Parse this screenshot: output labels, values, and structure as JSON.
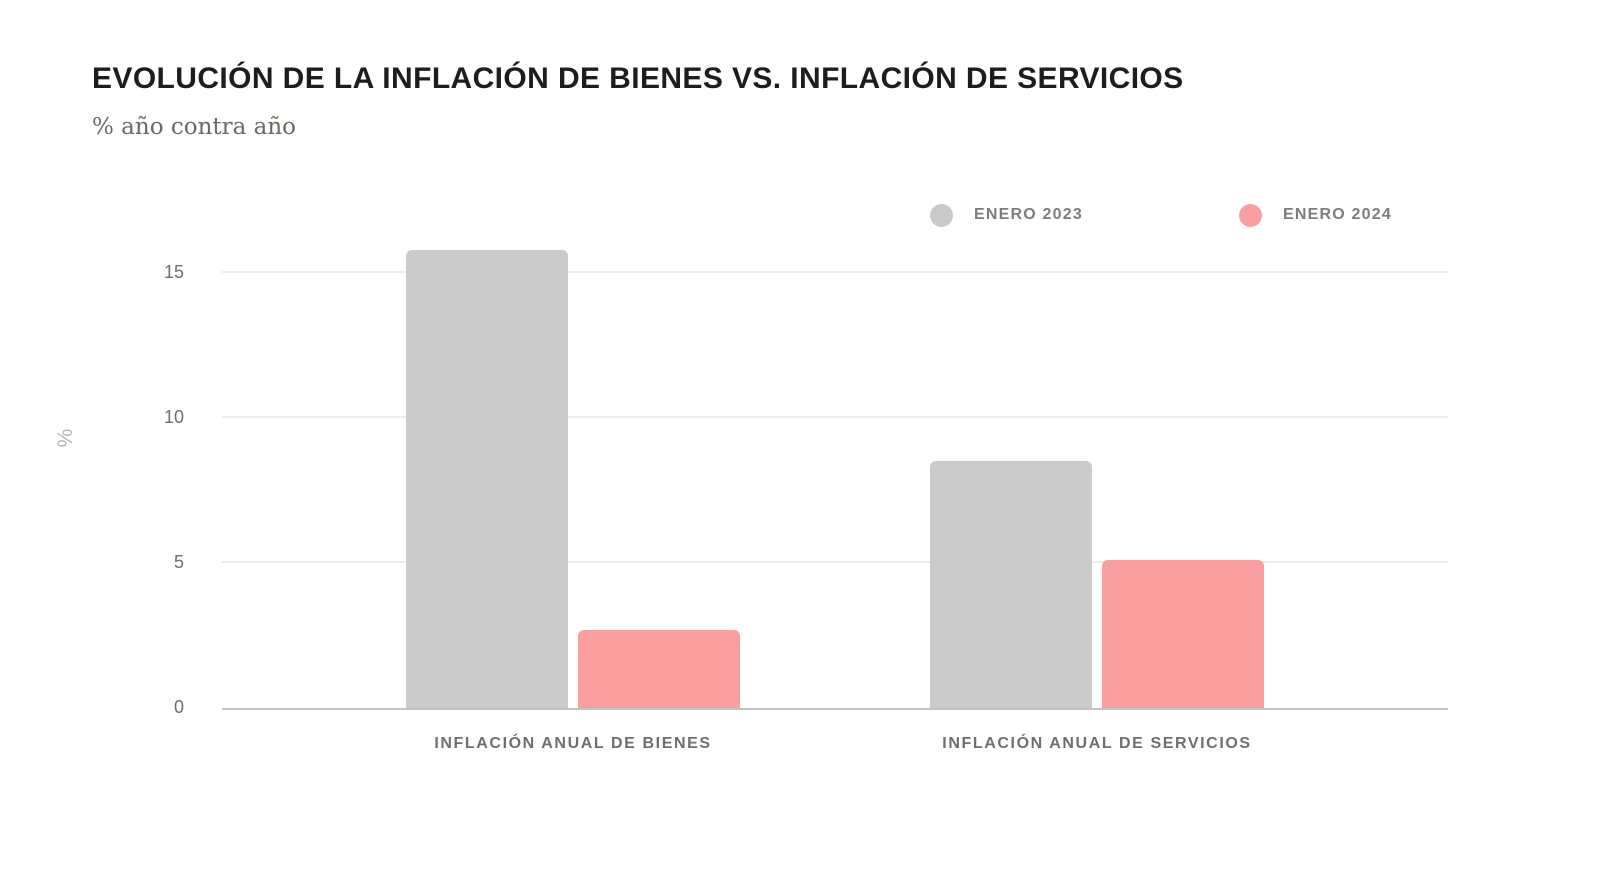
{
  "header": {
    "title": "EVOLUCIÓN DE LA INFLACIÓN DE BIENES VS. INFLACIÓN DE SERVICIOS",
    "subtitle": "% año contra año"
  },
  "legend": {
    "items": [
      {
        "label": "ENERO 2023",
        "color": "#c9c9c9"
      },
      {
        "label": "ENERO 2024",
        "color": "#fa9f9f"
      }
    ]
  },
  "chart_data": {
    "type": "bar",
    "title": "EVOLUCIÓN DE LA INFLACIÓN DE BIENES VS. INFLACIÓN DE SERVICIOS",
    "subtitle": "% año contra año",
    "categories": [
      "INFLACIÓN ANUAL DE BIENES",
      "INFLACIÓN ANUAL DE SERVICIOS"
    ],
    "category_slugs": [
      "bienes",
      "servicios"
    ],
    "series": [
      {
        "name": "ENERO 2023",
        "color": "#cbcbcb",
        "values": [
          15.8,
          8.5
        ]
      },
      {
        "name": "ENERO 2024",
        "color": "#fa9f9f",
        "values": [
          2.7,
          5.1
        ]
      }
    ],
    "xlabel": "",
    "ylabel": "%",
    "yticks": [
      0,
      5,
      10,
      15
    ],
    "ylim": [
      0,
      16.3
    ],
    "grid": true,
    "legend_position": "top-right",
    "axis_color": "#c3c3c3",
    "gridline_color": "#ededed",
    "background_color": "#ffffff"
  }
}
